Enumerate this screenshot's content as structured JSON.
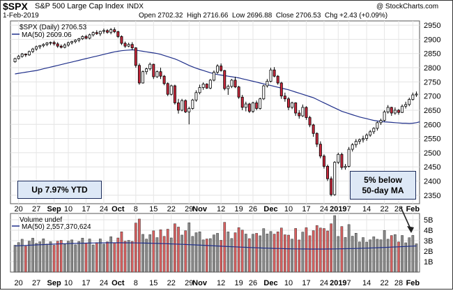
{
  "header": {
    "symbol": "$SPX",
    "name": "S&P 500 Large Cap Index",
    "exchange": "INDX",
    "watermark": "@ StockCharts.com",
    "date": "1-Feb-2019",
    "open_label": "Open",
    "open": "2702.32",
    "high_label": "High",
    "high": "2716.66",
    "low_label": "Low",
    "low": "2696.88",
    "close_label": "Close",
    "close": "2706.53",
    "chg_label": "Chg",
    "chg": "+2.43 (+0.09%)"
  },
  "legend": {
    "price": "$SPX (Daily) 2706.53",
    "ma": "MA(50) 2609.06",
    "volume": "Volume undef",
    "vol_ma": "MA(50) 2,557,370,624"
  },
  "annotations": {
    "ytd": "Up 7.97% YTD",
    "ma_note_line1": "5% below",
    "ma_note_line2": "50-day MA"
  },
  "colors": {
    "up": "#ffffff",
    "down": "#c8283c",
    "ma": "#1f2f8a",
    "vol_up": "#8a8a8a",
    "vol_down": "#d86060",
    "box_bg": "#dde8f6"
  },
  "chart_data": {
    "type": "candlestick",
    "y_axis": {
      "ticks": [
        2350,
        2400,
        2450,
        2500,
        2550,
        2600,
        2650,
        2700,
        2750,
        2800,
        2850,
        2900,
        2950
      ],
      "range": [
        2320,
        2965
      ],
      "side": "right"
    },
    "volume_axis": {
      "ticks": [
        "1B",
        "2B",
        "3B",
        "4B",
        "5B"
      ],
      "range": [
        0,
        5.6
      ]
    },
    "x_axis": {
      "labels": [
        {
          "text": "20",
          "i": 1
        },
        {
          "text": "27",
          "i": 6
        },
        {
          "text": "Sep",
          "i": 11,
          "bold": true
        },
        {
          "text": "10",
          "i": 15
        },
        {
          "text": "17",
          "i": 20
        },
        {
          "text": "24",
          "i": 25
        },
        {
          "text": "Oct",
          "i": 29,
          "bold": true
        },
        {
          "text": "8",
          "i": 34
        },
        {
          "text": "15",
          "i": 39
        },
        {
          "text": "22",
          "i": 44
        },
        {
          "text": "29",
          "i": 49
        },
        {
          "text": "Nov",
          "i": 52,
          "bold": true
        },
        {
          "text": "12",
          "i": 58
        },
        {
          "text": "19",
          "i": 63
        },
        {
          "text": "26",
          "i": 67
        },
        {
          "text": "Dec",
          "i": 72,
          "bold": true
        },
        {
          "text": "10",
          "i": 77
        },
        {
          "text": "17",
          "i": 82
        },
        {
          "text": "24",
          "i": 87
        },
        {
          "text": "2019",
          "i": 91,
          "bold": true
        },
        {
          "text": "7",
          "i": 94
        },
        {
          "text": "14",
          "i": 99
        },
        {
          "text": "22",
          "i": 104
        },
        {
          "text": "28",
          "i": 108
        },
        {
          "text": "Feb",
          "i": 112,
          "bold": true
        }
      ]
    },
    "candles": [
      [
        2821,
        2835,
        2818,
        2832
      ],
      [
        2832,
        2845,
        2829,
        2840
      ],
      [
        2840,
        2852,
        2835,
        2848
      ],
      [
        2848,
        2850,
        2838,
        2845
      ],
      [
        2845,
        2860,
        2842,
        2857
      ],
      [
        2857,
        2870,
        2852,
        2866
      ],
      [
        2866,
        2878,
        2860,
        2874
      ],
      [
        2874,
        2880,
        2866,
        2878
      ],
      [
        2878,
        2886,
        2872,
        2882
      ],
      [
        2882,
        2890,
        2876,
        2887
      ],
      [
        2887,
        2892,
        2880,
        2889
      ],
      [
        2889,
        2895,
        2878,
        2884
      ],
      [
        2884,
        2890,
        2870,
        2876
      ],
      [
        2876,
        2882,
        2868,
        2872
      ],
      [
        2872,
        2886,
        2868,
        2880
      ],
      [
        2880,
        2892,
        2874,
        2888
      ],
      [
        2888,
        2895,
        2882,
        2892
      ],
      [
        2892,
        2900,
        2886,
        2897
      ],
      [
        2897,
        2905,
        2890,
        2902
      ],
      [
        2902,
        2914,
        2898,
        2910
      ],
      [
        2910,
        2916,
        2900,
        2904
      ],
      [
        2904,
        2920,
        2900,
        2916
      ],
      [
        2916,
        2928,
        2910,
        2924
      ],
      [
        2924,
        2932,
        2916,
        2920
      ],
      [
        2920,
        2930,
        2912,
        2928
      ],
      [
        2928,
        2938,
        2920,
        2931
      ],
      [
        2931,
        2936,
        2920,
        2925
      ],
      [
        2925,
        2940,
        2918,
        2934
      ],
      [
        2934,
        2942,
        2922,
        2927
      ],
      [
        2927,
        2930,
        2905,
        2910
      ],
      [
        2910,
        2914,
        2880,
        2886
      ],
      [
        2886,
        2892,
        2870,
        2876
      ],
      [
        2876,
        2888,
        2872,
        2882
      ],
      [
        2882,
        2890,
        2862,
        2870
      ],
      [
        2870,
        2872,
        2800,
        2808
      ],
      [
        2808,
        2815,
        2740,
        2746
      ],
      [
        2746,
        2790,
        2744,
        2786
      ],
      [
        2786,
        2800,
        2776,
        2796
      ],
      [
        2796,
        2818,
        2790,
        2812
      ],
      [
        2812,
        2814,
        2760,
        2768
      ],
      [
        2768,
        2790,
        2764,
        2786
      ],
      [
        2786,
        2800,
        2760,
        2770
      ],
      [
        2770,
        2774,
        2738,
        2744
      ],
      [
        2744,
        2748,
        2700,
        2706
      ],
      [
        2706,
        2740,
        2702,
        2736
      ],
      [
        2736,
        2740,
        2670,
        2676
      ],
      [
        2676,
        2690,
        2638,
        2650
      ],
      [
        2650,
        2690,
        2646,
        2684
      ],
      [
        2684,
        2688,
        2640,
        2644
      ],
      [
        2644,
        2662,
        2600,
        2656
      ],
      [
        2656,
        2690,
        2652,
        2686
      ],
      [
        2686,
        2720,
        2680,
        2712
      ],
      [
        2712,
        2740,
        2706,
        2730
      ],
      [
        2730,
        2748,
        2722,
        2742
      ],
      [
        2742,
        2745,
        2725,
        2728
      ],
      [
        2728,
        2760,
        2724,
        2756
      ],
      [
        2756,
        2790,
        2752,
        2784
      ],
      [
        2784,
        2812,
        2778,
        2806
      ],
      [
        2806,
        2815,
        2786,
        2790
      ],
      [
        2790,
        2792,
        2720,
        2726
      ],
      [
        2726,
        2740,
        2704,
        2734
      ],
      [
        2734,
        2760,
        2728,
        2756
      ],
      [
        2756,
        2768,
        2728,
        2732
      ],
      [
        2732,
        2736,
        2690,
        2696
      ],
      [
        2696,
        2704,
        2650,
        2660
      ],
      [
        2660,
        2680,
        2646,
        2672
      ],
      [
        2672,
        2676,
        2640,
        2646
      ],
      [
        2646,
        2680,
        2640,
        2676
      ],
      [
        2676,
        2684,
        2650,
        2656
      ],
      [
        2656,
        2694,
        2652,
        2690
      ],
      [
        2690,
        2740,
        2686,
        2736
      ],
      [
        2736,
        2760,
        2730,
        2752
      ],
      [
        2752,
        2800,
        2748,
        2792
      ],
      [
        2792,
        2802,
        2766,
        2770
      ],
      [
        2770,
        2774,
        2740,
        2746
      ],
      [
        2746,
        2750,
        2690,
        2700
      ],
      [
        2700,
        2712,
        2680,
        2690
      ],
      [
        2690,
        2696,
        2650,
        2660
      ],
      [
        2660,
        2680,
        2654,
        2676
      ],
      [
        2676,
        2678,
        2630,
        2640
      ],
      [
        2640,
        2650,
        2620,
        2630
      ],
      [
        2630,
        2670,
        2626,
        2660
      ],
      [
        2660,
        2664,
        2616,
        2624
      ],
      [
        2624,
        2630,
        2590,
        2598
      ],
      [
        2598,
        2602,
        2556,
        2568
      ],
      [
        2568,
        2572,
        2520,
        2530
      ],
      [
        2530,
        2540,
        2480,
        2488
      ],
      [
        2488,
        2494,
        2444,
        2452
      ],
      [
        2452,
        2458,
        2400,
        2408
      ],
      [
        2408,
        2416,
        2346,
        2352
      ],
      [
        2352,
        2470,
        2348,
        2466
      ],
      [
        2466,
        2500,
        2460,
        2494
      ],
      [
        2494,
        2500,
        2440,
        2448
      ],
      [
        2448,
        2460,
        2440,
        2452
      ],
      [
        2452,
        2520,
        2448,
        2512
      ],
      [
        2512,
        2534,
        2504,
        2528
      ],
      [
        2528,
        2548,
        2518,
        2540
      ],
      [
        2540,
        2550,
        2530,
        2546
      ],
      [
        2546,
        2560,
        2536,
        2550
      ],
      [
        2550,
        2568,
        2542,
        2562
      ],
      [
        2562,
        2580,
        2556,
        2574
      ],
      [
        2574,
        2590,
        2566,
        2586
      ],
      [
        2586,
        2610,
        2578,
        2606
      ],
      [
        2606,
        2620,
        2598,
        2614
      ],
      [
        2614,
        2650,
        2610,
        2644
      ],
      [
        2644,
        2668,
        2638,
        2660
      ],
      [
        2660,
        2662,
        2630,
        2640
      ],
      [
        2640,
        2660,
        2634,
        2650
      ],
      [
        2650,
        2654,
        2634,
        2642
      ],
      [
        2642,
        2670,
        2640,
        2664
      ],
      [
        2664,
        2680,
        2656,
        2670
      ],
      [
        2670,
        2694,
        2664,
        2688
      ],
      [
        2688,
        2712,
        2684,
        2704
      ],
      [
        2704,
        2716,
        2697,
        2707
      ]
    ],
    "ma50": [
      2778,
      2780,
      2782,
      2784,
      2786,
      2788,
      2790,
      2793,
      2796,
      2799,
      2802,
      2805,
      2808,
      2811,
      2814,
      2817,
      2820,
      2823,
      2826,
      2829,
      2832,
      2835,
      2838,
      2841,
      2844,
      2847,
      2850,
      2853,
      2856,
      2858,
      2860,
      2861,
      2862,
      2863,
      2862,
      2860,
      2858,
      2856,
      2854,
      2852,
      2850,
      2847,
      2843,
      2839,
      2835,
      2831,
      2826,
      2820,
      2814,
      2808,
      2803,
      2798,
      2794,
      2790,
      2786,
      2782,
      2779,
      2776,
      2774,
      2772,
      2770,
      2768,
      2766,
      2764,
      2761,
      2758,
      2755,
      2752,
      2749,
      2746,
      2743,
      2740,
      2737,
      2734,
      2731,
      2728,
      2725,
      2722,
      2718,
      2714,
      2710,
      2706,
      2702,
      2698,
      2694,
      2688,
      2682,
      2676,
      2670,
      2664,
      2658,
      2652,
      2646,
      2642,
      2638,
      2634,
      2630,
      2626,
      2623,
      2620,
      2617,
      2614,
      2612,
      2610,
      2609,
      2608,
      2607,
      2606,
      2605,
      2604,
      2604,
      2603,
      2604,
      2606,
      2609
    ]
  }
}
